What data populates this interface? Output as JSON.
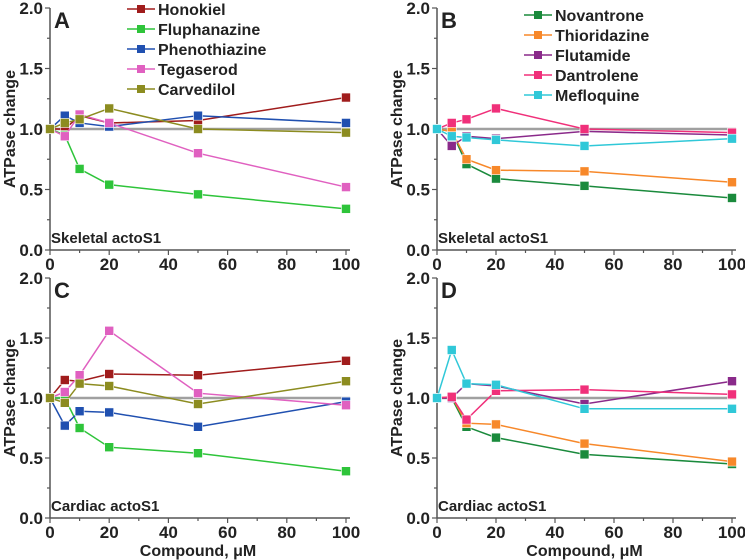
{
  "chart_data": [
    {
      "type": "line",
      "panel": "A",
      "annotation": "Skeletal actoS1",
      "xlabel": "",
      "ylabel": "ATPase change",
      "xlim": [
        0,
        100
      ],
      "ylim": [
        0,
        2.0
      ],
      "xticks": [
        0,
        20,
        40,
        60,
        80,
        100
      ],
      "yticks": [
        "0.0",
        "0.5",
        "1.0",
        "1.5",
        "2.0"
      ],
      "reference_line": 1.0,
      "legend": "top-center",
      "x": [
        0,
        5,
        10,
        20,
        50,
        100
      ],
      "series": [
        {
          "name": "Honokiel",
          "color": "#a01c1c",
          "values": [
            1.0,
            1.0,
            1.11,
            1.05,
            1.07,
            1.26
          ]
        },
        {
          "name": "Fluphanazine",
          "color": "#2ec43a",
          "values": [
            1.0,
            0.95,
            0.67,
            0.54,
            0.46,
            0.34
          ]
        },
        {
          "name": "Phenothiazine",
          "color": "#2050b0",
          "values": [
            1.0,
            1.11,
            1.05,
            1.02,
            1.11,
            1.05
          ]
        },
        {
          "name": "Tegaserod",
          "color": "#e060c0",
          "values": [
            1.0,
            0.94,
            1.12,
            1.05,
            0.8,
            0.52
          ]
        },
        {
          "name": "Carvedilol",
          "color": "#8c8c20",
          "values": [
            1.0,
            1.05,
            1.08,
            1.17,
            1.0,
            0.97
          ]
        }
      ]
    },
    {
      "type": "line",
      "panel": "B",
      "annotation": "Skeletal actoS1",
      "xlabel": "",
      "ylabel": "ATPase change",
      "xlim": [
        0,
        100
      ],
      "ylim": [
        0,
        2.0
      ],
      "xticks": [
        0,
        20,
        40,
        60,
        80,
        100
      ],
      "yticks": [
        "0.0",
        "0.5",
        "1.0",
        "1.5",
        "2.0"
      ],
      "reference_line": 1.0,
      "legend": "top-center",
      "x": [
        0,
        5,
        10,
        20,
        50,
        100
      ],
      "series": [
        {
          "name": "Novantrone",
          "color": "#1a8a3c",
          "values": [
            1.0,
            0.98,
            0.71,
            0.59,
            0.53,
            0.43
          ]
        },
        {
          "name": "Thioridazine",
          "color": "#f7882a",
          "values": [
            1.0,
            0.98,
            0.75,
            0.66,
            0.65,
            0.56
          ]
        },
        {
          "name": "Flutamide",
          "color": "#8a2a8a",
          "values": [
            1.0,
            0.86,
            0.94,
            0.92,
            0.98,
            0.95
          ]
        },
        {
          "name": "Dantrolene",
          "color": "#f0307a",
          "values": [
            1.0,
            1.05,
            1.08,
            1.17,
            1.0,
            0.97
          ]
        },
        {
          "name": "Mefloquine",
          "color": "#30c8d8",
          "values": [
            1.0,
            0.94,
            0.93,
            0.91,
            0.86,
            0.92
          ]
        }
      ]
    },
    {
      "type": "line",
      "panel": "C",
      "annotation": "Cardiac actoS1",
      "xlabel": "Compound, μM",
      "ylabel": "ATPase change",
      "xlim": [
        0,
        100
      ],
      "ylim": [
        0,
        2.0
      ],
      "xticks": [
        0,
        20,
        40,
        60,
        80,
        100
      ],
      "yticks": [
        "0.0",
        "0.5",
        "1.0",
        "1.5",
        "2.0"
      ],
      "reference_line": 1.0,
      "x": [
        0,
        5,
        10,
        20,
        50,
        100
      ],
      "series": [
        {
          "name": "Honokiel",
          "color": "#a01c1c",
          "values": [
            1.0,
            1.15,
            1.14,
            1.2,
            1.19,
            1.31
          ]
        },
        {
          "name": "Fluphanazine",
          "color": "#2ec43a",
          "values": [
            1.0,
            1.0,
            0.75,
            0.59,
            0.54,
            0.39
          ]
        },
        {
          "name": "Phenothiazine",
          "color": "#2050b0",
          "values": [
            1.0,
            0.77,
            0.89,
            0.88,
            0.76,
            0.97
          ]
        },
        {
          "name": "Tegaserod",
          "color": "#e060c0",
          "values": [
            1.0,
            1.05,
            1.19,
            1.56,
            1.04,
            0.94
          ]
        },
        {
          "name": "Carvedilol",
          "color": "#8c8c20",
          "values": [
            1.0,
            0.96,
            1.12,
            1.1,
            0.95,
            1.14
          ]
        }
      ]
    },
    {
      "type": "line",
      "panel": "D",
      "annotation": "Cardiac actoS1",
      "xlabel": "Compound, μM",
      "ylabel": "ATPase change",
      "xlim": [
        0,
        100
      ],
      "ylim": [
        0,
        2.0
      ],
      "xticks": [
        0,
        20,
        40,
        60,
        80,
        100
      ],
      "yticks": [
        "0.0",
        "0.5",
        "1.0",
        "1.5",
        "2.0"
      ],
      "reference_line": 1.0,
      "x": [
        0,
        5,
        10,
        20,
        50,
        100
      ],
      "series": [
        {
          "name": "Novantrone",
          "color": "#1a8a3c",
          "values": [
            1.0,
            1.0,
            0.76,
            0.67,
            0.53,
            0.45
          ]
        },
        {
          "name": "Thioridazine",
          "color": "#f7882a",
          "values": [
            1.0,
            1.01,
            0.79,
            0.78,
            0.62,
            0.47
          ]
        },
        {
          "name": "Flutamide",
          "color": "#8a2a8a",
          "values": [
            1.0,
            1.0,
            1.12,
            1.1,
            0.95,
            1.14
          ]
        },
        {
          "name": "Dantrolene",
          "color": "#f0307a",
          "values": [
            1.0,
            1.01,
            0.82,
            1.06,
            1.07,
            1.03
          ]
        },
        {
          "name": "Mefloquine",
          "color": "#30c8d8",
          "values": [
            1.0,
            1.4,
            1.12,
            1.11,
            0.91,
            0.91
          ]
        }
      ]
    }
  ]
}
